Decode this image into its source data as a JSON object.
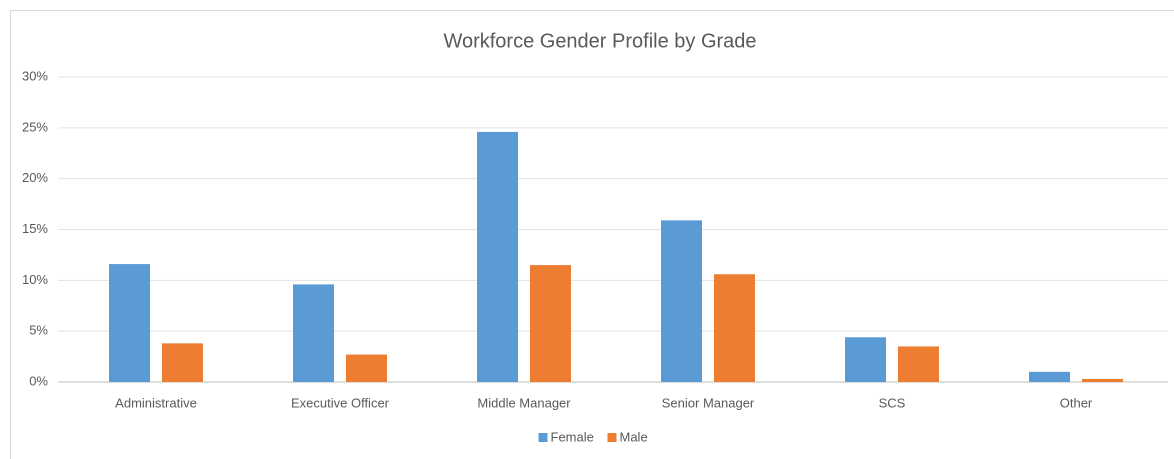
{
  "chart_data": {
    "type": "bar",
    "title": "Workforce Gender Profile by Grade",
    "categories": [
      "Administrative",
      "Executive Officer",
      "Middle Manager",
      "Senior Manager",
      "SCS",
      "Other"
    ],
    "series": [
      {
        "name": "Female",
        "color": "#5b9bd5",
        "values": [
          11.6,
          9.6,
          24.6,
          15.9,
          4.4,
          1.0
        ]
      },
      {
        "name": "Male",
        "color": "#ed7d31",
        "values": [
          3.8,
          2.7,
          11.5,
          10.6,
          3.5,
          0.3
        ]
      }
    ],
    "ylim": [
      0,
      30
    ],
    "yticks": [
      {
        "value": 0,
        "label": "0%"
      },
      {
        "value": 5,
        "label": "5%"
      },
      {
        "value": 10,
        "label": "10%"
      },
      {
        "value": 15,
        "label": "15%"
      },
      {
        "value": 20,
        "label": "20%"
      },
      {
        "value": 25,
        "label": "25%"
      },
      {
        "value": 30,
        "label": "30%"
      }
    ],
    "grid": true,
    "legend": "bottom"
  }
}
